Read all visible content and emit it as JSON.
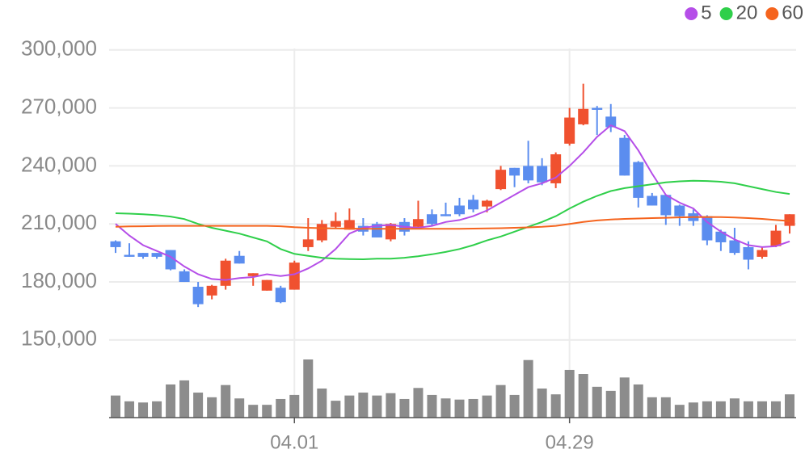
{
  "chart_data": {
    "type": "candlestick",
    "categories": [
      null,
      null,
      null,
      null,
      null,
      null,
      null,
      null,
      null,
      null,
      null,
      null,
      null,
      "04.01",
      null,
      null,
      null,
      null,
      null,
      null,
      null,
      null,
      null,
      null,
      null,
      null,
      null,
      null,
      null,
      null,
      null,
      null,
      null,
      "04.29",
      null,
      null,
      null,
      null,
      null,
      null,
      null,
      null,
      null,
      null,
      null,
      null,
      null,
      null,
      null,
      null
    ],
    "open": [
      201000,
      194000,
      195000,
      195000,
      196500,
      185500,
      177500,
      173000,
      178000,
      193500,
      183000,
      175500,
      177000,
      176000,
      198000,
      201500,
      208500,
      207000,
      209000,
      210000,
      202000,
      211000,
      208500,
      215000,
      215000,
      219500,
      222500,
      219000,
      228000,
      239000,
      240000,
      240000,
      231000,
      251500,
      261500,
      270000,
      265500,
      254500,
      242000,
      224500,
      225000,
      219500,
      215500,
      214000,
      206000,
      201500,
      198000,
      193000,
      198500,
      209000
    ],
    "high": [
      201500,
      200000,
      195000,
      195000,
      196500,
      186500,
      180000,
      178500,
      192000,
      196000,
      184500,
      181000,
      178000,
      191000,
      213000,
      212000,
      216000,
      218000,
      213000,
      211000,
      210500,
      213000,
      222000,
      217500,
      221000,
      223500,
      225000,
      222500,
      240000,
      239000,
      253000,
      244000,
      247000,
      270000,
      282500,
      271000,
      272000,
      256000,
      242500,
      226000,
      225000,
      220000,
      217500,
      214500,
      207000,
      208000,
      201000,
      198000,
      209500,
      215000
    ],
    "low": [
      195000,
      193000,
      192000,
      192000,
      186000,
      180000,
      167000,
      171000,
      176000,
      189500,
      178000,
      175500,
      169000,
      176000,
      196000,
      200500,
      208000,
      207000,
      204000,
      203000,
      201000,
      204000,
      208000,
      209000,
      214000,
      214000,
      216000,
      216000,
      227500,
      229000,
      231000,
      230000,
      228500,
      250500,
      261000,
      256000,
      257500,
      235000,
      218500,
      219500,
      209500,
      209000,
      209000,
      199000,
      196000,
      194000,
      186500,
      192000,
      198000,
      205000
    ],
    "close": [
      198000,
      193000,
      193000,
      193000,
      186500,
      180000,
      168500,
      178000,
      191000,
      189500,
      184500,
      181000,
      169500,
      190000,
      202000,
      210000,
      211500,
      212000,
      206000,
      203000,
      210000,
      206000,
      212500,
      210000,
      214000,
      215000,
      217500,
      222000,
      238000,
      235000,
      232500,
      231500,
      246000,
      265000,
      269500,
      269000,
      260000,
      235000,
      223500,
      219500,
      214500,
      214000,
      211500,
      201500,
      200500,
      195000,
      191500,
      196500,
      206500,
      215000
    ],
    "up_color": "#f0512f",
    "down_color": "#5b8def",
    "series": [
      {
        "name": "5",
        "color": "#b54ee8",
        "values": [
          210000,
          204000,
          199000,
          196000,
          193000,
          188000,
          184000,
          181500,
          181000,
          182000,
          182500,
          184000,
          183000,
          184000,
          187000,
          191000,
          197000,
          205000,
          208000,
          209000,
          209500,
          208500,
          208000,
          209000,
          211000,
          212000,
          214000,
          217000,
          221000,
          225000,
          229000,
          231000,
          234000,
          240000,
          247000,
          255000,
          261000,
          258000,
          248000,
          236000,
          225000,
          221000,
          218000,
          211000,
          206000,
          202000,
          199000,
          198000,
          198500,
          201000
        ]
      },
      {
        "name": "20",
        "color": "#2fcf4a",
        "values": [
          215500,
          215300,
          215000,
          214500,
          213800,
          212500,
          210000,
          208000,
          206500,
          205000,
          203000,
          201000,
          197000,
          194500,
          193500,
          192500,
          192000,
          191800,
          191700,
          192000,
          192000,
          192500,
          193300,
          194300,
          195500,
          197000,
          199000,
          201500,
          203500,
          206000,
          208500,
          211000,
          214000,
          218000,
          221500,
          224500,
          227000,
          228500,
          229500,
          230500,
          231500,
          232000,
          232300,
          232200,
          231800,
          231000,
          229500,
          228000,
          226500,
          225500
        ]
      },
      {
        "name": "60",
        "color": "#f5641e",
        "values": [
          208500,
          208700,
          208800,
          208900,
          209000,
          209000,
          209000,
          209000,
          209000,
          209000,
          209000,
          209000,
          208800,
          208300,
          208000,
          207800,
          207700,
          207600,
          207500,
          207500,
          207500,
          207500,
          207500,
          207500,
          207500,
          207500,
          207600,
          207700,
          207800,
          208000,
          208200,
          208500,
          209000,
          210000,
          211000,
          211800,
          212300,
          212600,
          212800,
          213000,
          213200,
          213400,
          213500,
          213600,
          213500,
          213300,
          213000,
          212600,
          212000,
          211500
        ]
      }
    ],
    "volume": {
      "color": "#8c8c8c",
      "values": [
        38,
        28,
        26,
        28,
        57,
        64,
        43,
        35,
        56,
        33,
        22,
        22,
        32,
        39,
        100,
        50,
        29,
        38,
        43,
        38,
        42,
        32,
        51,
        39,
        33,
        31,
        32,
        38,
        56,
        39,
        99,
        50,
        40,
        82,
        75,
        53,
        46,
        69,
        57,
        35,
        35,
        22,
        26,
        28,
        28,
        33,
        28,
        28,
        28,
        40
      ],
      "vlim": [
        0,
        100
      ]
    },
    "ylim": [
      142000,
      307000
    ],
    "yticks": [
      {
        "value": 150000,
        "label": "150,000"
      },
      {
        "value": 180000,
        "label": "180,000"
      },
      {
        "value": 210000,
        "label": "210,000"
      },
      {
        "value": 240000,
        "label": "240,000"
      },
      {
        "value": 270000,
        "label": "270,000"
      },
      {
        "value": 300000,
        "label": "300,000"
      }
    ],
    "grid": true
  }
}
